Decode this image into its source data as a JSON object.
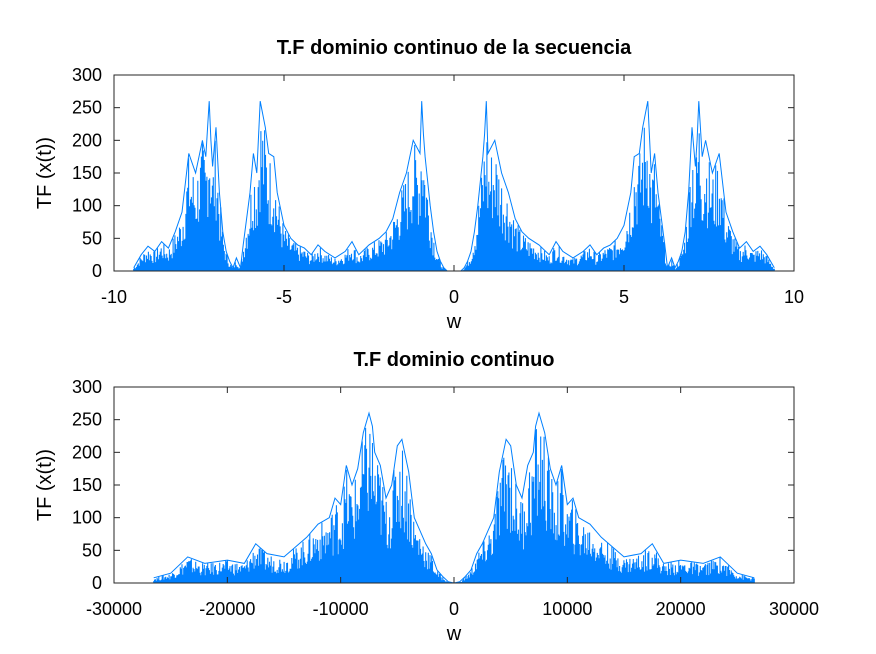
{
  "chart_data": [
    {
      "type": "line",
      "title": "T.F dominio continuo de la secuencia",
      "xlabel": "w",
      "ylabel": "TF (x(t))",
      "xlim": [
        -10,
        10
      ],
      "ylim": [
        0,
        300
      ],
      "xticks": [
        -10,
        -5,
        0,
        5,
        10
      ],
      "yticks": [
        0,
        50,
        100,
        150,
        200,
        250,
        300
      ],
      "xtick_labels": [
        "-10",
        "-5",
        "0",
        "5",
        "10"
      ],
      "ytick_labels": [
        "0",
        "50",
        "100",
        "150",
        "200",
        "250",
        "300"
      ],
      "grid": false,
      "series_color": "#0080ff",
      "x": [
        -9.42,
        -9.2,
        -9.0,
        -8.8,
        -8.6,
        -8.4,
        -8.2,
        -8.0,
        -7.8,
        -7.6,
        -7.4,
        -7.3,
        -7.2,
        -7.15,
        -7.1,
        -7.0,
        -6.9,
        -6.8,
        -6.7,
        -6.6,
        -6.5,
        -6.4,
        -6.28,
        -6.2,
        -6.0,
        -5.9,
        -5.8,
        -5.7,
        -5.55,
        -5.45,
        -5.3,
        -5.2,
        -5.0,
        -4.8,
        -4.6,
        -4.4,
        -4.2,
        -4.0,
        -3.8,
        -3.5,
        -3.2,
        -3.0,
        -2.8,
        -2.5,
        -2.2,
        -2.0,
        -1.8,
        -1.6,
        -1.4,
        -1.2,
        -1.0,
        -0.95,
        -0.9,
        -0.85,
        -0.8,
        -0.7,
        -0.6,
        -0.5,
        -0.4,
        -0.3,
        -0.2,
        0.0,
        0.2,
        0.3,
        0.4,
        0.5,
        0.6,
        0.7,
        0.8,
        0.85,
        0.9,
        0.95,
        1.0,
        1.2,
        1.4,
        1.6,
        1.8,
        2.0,
        2.2,
        2.5,
        2.8,
        3.0,
        3.2,
        3.5,
        3.8,
        4.0,
        4.2,
        4.4,
        4.6,
        4.8,
        5.0,
        5.2,
        5.3,
        5.45,
        5.55,
        5.7,
        5.8,
        5.9,
        6.0,
        6.2,
        6.28,
        6.4,
        6.5,
        6.6,
        6.7,
        6.8,
        6.9,
        7.0,
        7.1,
        7.15,
        7.2,
        7.3,
        7.4,
        7.6,
        7.8,
        8.0,
        8.2,
        8.4,
        8.6,
        8.8,
        9.0,
        9.2,
        9.42
      ],
      "y": [
        5,
        25,
        38,
        30,
        45,
        35,
        60,
        90,
        180,
        150,
        200,
        175,
        260,
        200,
        160,
        220,
        120,
        60,
        30,
        15,
        5,
        20,
        5,
        40,
        120,
        180,
        150,
        260,
        220,
        180,
        175,
        120,
        70,
        50,
        40,
        35,
        25,
        40,
        30,
        20,
        30,
        45,
        25,
        40,
        50,
        60,
        80,
        120,
        150,
        200,
        180,
        260,
        210,
        175,
        150,
        100,
        60,
        30,
        15,
        5,
        0,
        0,
        0,
        5,
        15,
        30,
        60,
        100,
        150,
        175,
        210,
        260,
        180,
        200,
        150,
        120,
        80,
        60,
        50,
        40,
        25,
        45,
        30,
        20,
        30,
        40,
        25,
        35,
        40,
        50,
        70,
        120,
        175,
        180,
        220,
        260,
        150,
        180,
        120,
        40,
        5,
        20,
        5,
        15,
        30,
        60,
        120,
        220,
        160,
        200,
        260,
        175,
        200,
        150,
        180,
        90,
        60,
        35,
        45,
        30,
        38,
        25,
        5
      ]
    },
    {
      "type": "line",
      "title": "T.F dominio continuo",
      "xlabel": "w",
      "ylabel": "TF (x(t))",
      "xlim": [
        -30000,
        30000
      ],
      "ylim": [
        0,
        300
      ],
      "xticks": [
        -30000,
        -20000,
        -10000,
        0,
        10000,
        20000,
        30000
      ],
      "yticks": [
        0,
        50,
        100,
        150,
        200,
        250,
        300
      ],
      "xtick_labels": [
        "-30000",
        "-20000",
        "-10000",
        "0",
        "10000",
        "20000",
        "30000"
      ],
      "ytick_labels": [
        "0",
        "50",
        "100",
        "150",
        "200",
        "250",
        "300"
      ],
      "grid": false,
      "series_color": "#0080ff",
      "x": [
        -26500,
        -25000,
        -23500,
        -22000,
        -20000,
        -18500,
        -17500,
        -16500,
        -15000,
        -14000,
        -13000,
        -12000,
        -11000,
        -10500,
        -10000,
        -9500,
        -9000,
        -8500,
        -8000,
        -7500,
        -7200,
        -7000,
        -6500,
        -6000,
        -5500,
        -5000,
        -4600,
        -4000,
        -3500,
        -3000,
        -2500,
        -2000,
        -1500,
        -1000,
        -500,
        0,
        500,
        1000,
        1500,
        2000,
        2500,
        3000,
        3500,
        4000,
        4600,
        5000,
        5500,
        6000,
        6500,
        7000,
        7200,
        7500,
        8000,
        8500,
        9000,
        9500,
        10000,
        10500,
        11000,
        12000,
        13000,
        14000,
        15000,
        16500,
        17500,
        18500,
        20000,
        22000,
        23500,
        25000,
        26500
      ],
      "y": [
        8,
        15,
        40,
        30,
        35,
        30,
        60,
        45,
        40,
        55,
        70,
        90,
        100,
        130,
        120,
        180,
        150,
        175,
        230,
        260,
        240,
        200,
        180,
        130,
        150,
        210,
        220,
        170,
        100,
        80,
        60,
        45,
        20,
        10,
        2,
        0,
        2,
        10,
        20,
        45,
        60,
        80,
        100,
        170,
        220,
        210,
        150,
        130,
        180,
        200,
        240,
        260,
        230,
        175,
        150,
        180,
        120,
        130,
        100,
        90,
        70,
        55,
        40,
        45,
        60,
        30,
        35,
        30,
        40,
        15,
        8
      ]
    }
  ]
}
